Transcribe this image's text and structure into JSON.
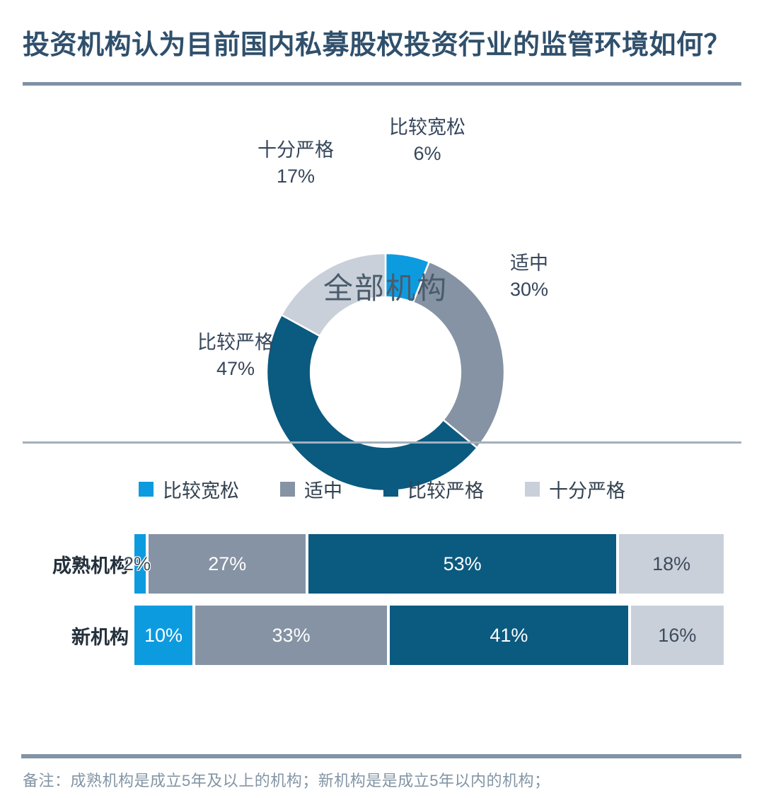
{
  "header": {
    "title": "投资机构认为目前国内私募股权投资行业的监管环境如何？"
  },
  "palette": {
    "loose_blue": "#0D9BE0",
    "medium_gray": "#8593A4",
    "strict_dark_blue": "#0B5A80",
    "very_strict_light_gray": "#C9D0DA",
    "title_color": "#30506C",
    "label_dark": "#36465A",
    "rule_color": "#7E92A6"
  },
  "legend": {
    "items": [
      {
        "label": "比较宽松",
        "color": "#0D9BE0"
      },
      {
        "label": "适中",
        "color": "#8593A4"
      },
      {
        "label": "比较严格",
        "color": "#0B5A80"
      },
      {
        "label": "十分严格",
        "color": "#C9D0DA"
      }
    ]
  },
  "donut": {
    "center_label": "全部机构",
    "labels": [
      {
        "name": "比较宽松",
        "pct": "6%"
      },
      {
        "name": "十分严格",
        "pct": "17%"
      },
      {
        "name": "适中",
        "pct": "30%"
      },
      {
        "name": "比较严格",
        "pct": "47%"
      }
    ]
  },
  "footer": {
    "note": "备注：成熟机构是成立5年及以上的机构；新机构是是成立5年以内的机构；"
  },
  "chart_data": [
    {
      "type": "pie",
      "subtype": "donut",
      "title": "全部机构",
      "categories": [
        "比较宽松",
        "适中",
        "比较严格",
        "十分严格"
      ],
      "values": [
        6,
        30,
        47,
        17
      ],
      "unit": "%",
      "colors": [
        "#0D9BE0",
        "#8593A4",
        "#0B5A80",
        "#C9D0DA"
      ],
      "start_angle_deg_from_top": 0,
      "direction": "clockwise",
      "inner_radius_ratio": 0.63,
      "legend_position": "outside-labels"
    },
    {
      "type": "bar",
      "subtype": "horizontal-stacked-100pct",
      "categories": [
        "成熟机构",
        "新机构"
      ],
      "series": [
        {
          "name": "比较宽松",
          "color": "#0D9BE0",
          "values": [
            2,
            10
          ]
        },
        {
          "name": "适中",
          "color": "#8593A4",
          "values": [
            27,
            33
          ]
        },
        {
          "name": "比较严格",
          "color": "#0B5A80",
          "values": [
            53,
            41
          ]
        },
        {
          "name": "十分严格",
          "color": "#C9D0DA",
          "values": [
            18,
            16
          ]
        }
      ],
      "unit": "%",
      "data_labels": true,
      "legend_position": "top-center",
      "xlim": [
        0,
        100
      ],
      "grid": false
    }
  ],
  "bars_display": {
    "rows": [
      {
        "label": "成熟机构",
        "segments": [
          "2%",
          "27%",
          "53%",
          "18%"
        ]
      },
      {
        "label": "新机构",
        "segments": [
          "10%",
          "33%",
          "41%",
          "16%"
        ]
      }
    ]
  }
}
